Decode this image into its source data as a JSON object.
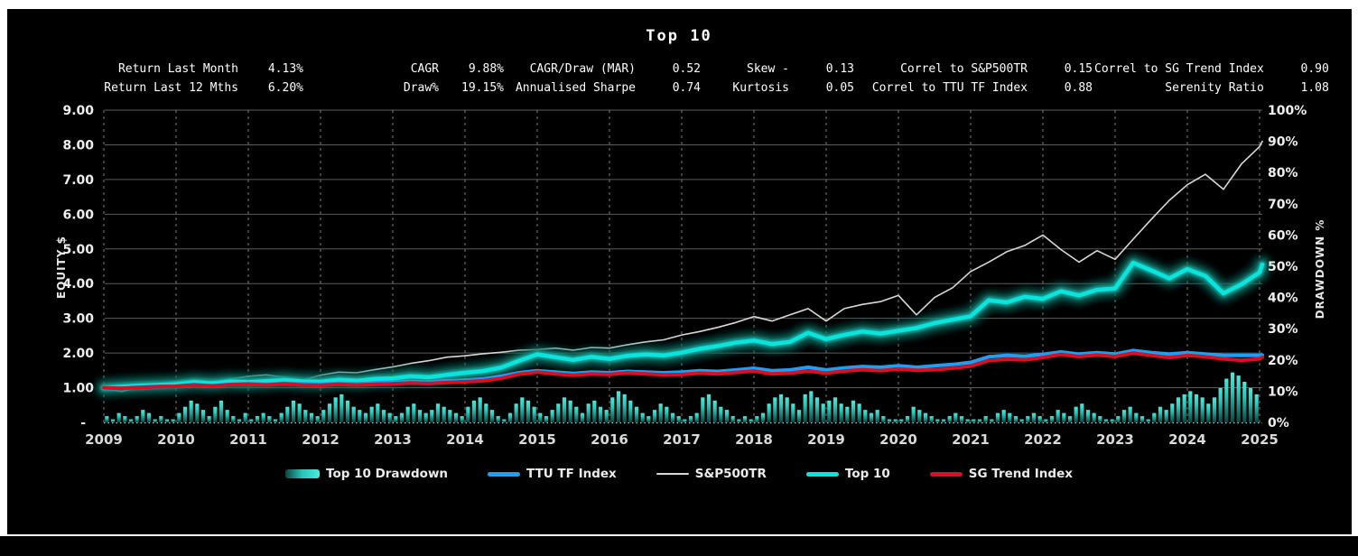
{
  "title": "Top 10",
  "colors": {
    "background": "#000000",
    "frame": "#ffffff",
    "grid": "#5c5c5c",
    "year_grid": "#8a8a8a",
    "baseline": "#cfcfcf",
    "tick_text": "#f0f0f0",
    "year_text": "#d9d9d9",
    "top10": "#0be4dc",
    "top10_glow": "#0a6e64",
    "ttu": "#1e9ef5",
    "sp500": "#d9d9d9",
    "sg_trend": "#d90f24",
    "bar_top": "#4aeadb",
    "bar_mid": "#2cc6b8",
    "bar_bottom": "#0b4540"
  },
  "stats": {
    "groups": [
      {
        "rows": [
          {
            "label": "Return Last Month",
            "value": "4.13%"
          },
          {
            "label": "Return Last 12 Mths",
            "value": "6.20%"
          }
        ]
      },
      {
        "rows": [
          {
            "label": "CAGR",
            "value": "9.88%"
          },
          {
            "label": "Draw%",
            "value": "19.15%"
          }
        ]
      },
      {
        "rows": [
          {
            "label": "CAGR/Draw (MAR)",
            "value": "0.52"
          },
          {
            "label": "Annualised Sharpe",
            "value": "0.74"
          }
        ]
      },
      {
        "rows": [
          {
            "label": "Skew -",
            "value": "0.13"
          },
          {
            "label": "Kurtosis",
            "value": "0.05"
          }
        ]
      },
      {
        "rows": [
          {
            "label": "Correl to S&P500TR",
            "value": "0.15"
          },
          {
            "label": "Correl to TTU TF Index",
            "value": "0.88"
          }
        ]
      },
      {
        "rows": [
          {
            "label": "Correl to SG Trend Index",
            "value": "0.90"
          },
          {
            "label": "Serenity Ratio",
            "value": "1.08"
          }
        ]
      }
    ]
  },
  "legend": {
    "items": [
      {
        "label": "Top 10 Drawdown",
        "swatch": "gradient",
        "colors": [
          "#0b4540",
          "#2cc6b8",
          "#4aeadb"
        ]
      },
      {
        "label": "TTU TF Index",
        "swatch": "line",
        "color": "#1e9ef5"
      },
      {
        "label": "S&P500TR",
        "swatch": "thin-line",
        "color": "#d9d9d9"
      },
      {
        "label": "Top 10",
        "swatch": "line",
        "color": "#0be4dc"
      },
      {
        "label": "SG Trend Index",
        "swatch": "line",
        "color": "#d90f24"
      }
    ]
  },
  "chart_data": {
    "type": "line",
    "title": "Top 10",
    "y_left": {
      "label": "EQUITY $",
      "min": 0,
      "max": 9,
      "ticks": [
        "9.00",
        "8.00",
        "7.00",
        "6.00",
        "5.00",
        "4.00",
        "3.00",
        "2.00",
        "1.00",
        "-"
      ]
    },
    "y_right": {
      "label": "DRAWDOWN %",
      "min": 0,
      "max": 100,
      "ticks": [
        "100%",
        "90%",
        "80%",
        "70%",
        "60%",
        "50%",
        "40%",
        "30%",
        "20%",
        "10%",
        "0%"
      ]
    },
    "x_ticks": [
      "2009",
      "2010",
      "2011",
      "2012",
      "2013",
      "2014",
      "2015",
      "2016",
      "2017",
      "2018",
      "2019",
      "2020",
      "2021",
      "2022",
      "2023",
      "2024",
      "2025"
    ],
    "x_years": [
      2009,
      2009.25,
      2009.5,
      2009.75,
      2010,
      2010.25,
      2010.5,
      2010.75,
      2011,
      2011.25,
      2011.5,
      2011.75,
      2012,
      2012.25,
      2012.5,
      2012.75,
      2013,
      2013.25,
      2013.5,
      2013.75,
      2014,
      2014.25,
      2014.5,
      2014.75,
      2015,
      2015.25,
      2015.5,
      2015.75,
      2016,
      2016.25,
      2016.5,
      2016.75,
      2017,
      2017.25,
      2017.5,
      2017.75,
      2018,
      2018.25,
      2018.5,
      2018.75,
      2019,
      2019.25,
      2019.5,
      2019.75,
      2020,
      2020.25,
      2020.5,
      2020.75,
      2021,
      2021.25,
      2021.5,
      2021.75,
      2022,
      2022.25,
      2022.5,
      2022.75,
      2023,
      2023.25,
      2023.5,
      2023.75,
      2024,
      2024.25,
      2024.5,
      2024.75,
      2025,
      2025.05
    ],
    "series": [
      {
        "name": "S&P500TR",
        "color": "#d9d9d9",
        "width": 1.6,
        "glow": false,
        "values": [
          0.97,
          0.89,
          1.02,
          1.12,
          1.18,
          1.22,
          1.13,
          1.25,
          1.33,
          1.37,
          1.3,
          1.22,
          1.36,
          1.45,
          1.43,
          1.52,
          1.6,
          1.7,
          1.78,
          1.88,
          1.92,
          1.98,
          2.02,
          2.08,
          2.1,
          2.14,
          2.08,
          2.16,
          2.14,
          2.24,
          2.32,
          2.38,
          2.52,
          2.62,
          2.74,
          2.88,
          3.05,
          2.92,
          3.1,
          3.28,
          2.92,
          3.28,
          3.4,
          3.48,
          3.66,
          3.1,
          3.6,
          3.88,
          4.35,
          4.62,
          4.92,
          5.1,
          5.4,
          4.98,
          4.62,
          4.95,
          4.7,
          5.28,
          5.85,
          6.4,
          6.85,
          7.15,
          6.72,
          7.45,
          7.95,
          8.1
        ]
      },
      {
        "name": "Top 10",
        "color": "#0be4dc",
        "width": 4.5,
        "glow": true,
        "values": [
          1.0,
          1.03,
          1.06,
          1.08,
          1.1,
          1.16,
          1.13,
          1.18,
          1.16,
          1.19,
          1.22,
          1.18,
          1.17,
          1.23,
          1.2,
          1.25,
          1.27,
          1.33,
          1.3,
          1.37,
          1.43,
          1.48,
          1.58,
          1.78,
          1.96,
          1.88,
          1.8,
          1.89,
          1.83,
          1.92,
          1.96,
          1.93,
          2.01,
          2.12,
          2.2,
          2.3,
          2.36,
          2.26,
          2.32,
          2.58,
          2.4,
          2.52,
          2.62,
          2.56,
          2.64,
          2.72,
          2.86,
          2.96,
          3.06,
          3.52,
          3.46,
          3.62,
          3.56,
          3.78,
          3.66,
          3.82,
          3.86,
          4.6,
          4.38,
          4.15,
          4.42,
          4.22,
          3.72,
          3.98,
          4.32,
          4.55
        ]
      },
      {
        "name": "TTU TF Index",
        "color": "#1e9ef5",
        "width": 4,
        "glow": false,
        "values": [
          1.0,
          0.99,
          1.02,
          1.04,
          1.05,
          1.09,
          1.06,
          1.1,
          1.12,
          1.1,
          1.13,
          1.11,
          1.1,
          1.13,
          1.11,
          1.14,
          1.15,
          1.18,
          1.16,
          1.2,
          1.22,
          1.25,
          1.33,
          1.43,
          1.49,
          1.45,
          1.41,
          1.45,
          1.43,
          1.47,
          1.45,
          1.43,
          1.45,
          1.49,
          1.47,
          1.51,
          1.56,
          1.49,
          1.51,
          1.59,
          1.51,
          1.57,
          1.61,
          1.59,
          1.63,
          1.59,
          1.63,
          1.67,
          1.73,
          1.89,
          1.93,
          1.91,
          1.96,
          2.03,
          1.97,
          2.01,
          1.97,
          2.07,
          2.01,
          1.97,
          2.01,
          1.97,
          1.93,
          1.93,
          1.93,
          1.94
        ]
      },
      {
        "name": "SG Trend Index",
        "color": "#d90f24",
        "width": 4,
        "glow": false,
        "values": [
          1.0,
          0.98,
          1.01,
          1.03,
          1.04,
          1.08,
          1.05,
          1.09,
          1.1,
          1.08,
          1.11,
          1.08,
          1.07,
          1.1,
          1.08,
          1.1,
          1.11,
          1.14,
          1.12,
          1.15,
          1.17,
          1.2,
          1.27,
          1.39,
          1.45,
          1.4,
          1.36,
          1.4,
          1.38,
          1.43,
          1.4,
          1.37,
          1.38,
          1.42,
          1.4,
          1.44,
          1.48,
          1.4,
          1.42,
          1.48,
          1.42,
          1.48,
          1.52,
          1.49,
          1.54,
          1.5,
          1.52,
          1.56,
          1.62,
          1.78,
          1.82,
          1.8,
          1.87,
          1.96,
          1.9,
          1.94,
          1.9,
          2.0,
          1.93,
          1.87,
          1.93,
          1.89,
          1.83,
          1.79,
          1.83,
          1.88
        ]
      }
    ],
    "drawdown": {
      "name": "Top 10 Drawdown",
      "unit": "%",
      "start": "2009-01",
      "monthly_values": [
        2,
        1,
        3,
        2,
        1,
        2,
        4,
        3,
        1,
        2,
        1,
        1,
        3,
        5,
        7,
        6,
        4,
        2,
        5,
        7,
        4,
        2,
        1,
        3,
        1,
        2,
        3,
        2,
        1,
        3,
        5,
        7,
        6,
        4,
        3,
        2,
        4,
        6,
        8,
        9,
        7,
        5,
        4,
        3,
        5,
        6,
        4,
        3,
        2,
        3,
        5,
        6,
        4,
        3,
        4,
        6,
        5,
        4,
        3,
        2,
        5,
        7,
        8,
        6,
        4,
        2,
        1,
        3,
        6,
        8,
        7,
        5,
        3,
        2,
        4,
        6,
        8,
        7,
        5,
        3,
        6,
        7,
        5,
        4,
        8,
        10,
        9,
        7,
        5,
        3,
        2,
        4,
        6,
        5,
        3,
        2,
        1,
        2,
        3,
        8,
        9,
        7,
        5,
        4,
        2,
        1,
        2,
        1,
        2,
        3,
        6,
        8,
        9,
        8,
        6,
        4,
        9,
        10,
        8,
        6,
        7,
        8,
        6,
        5,
        7,
        6,
        4,
        3,
        4,
        2,
        1,
        1,
        1,
        2,
        5,
        4,
        3,
        2,
        1,
        1,
        2,
        3,
        2,
        1,
        1,
        1,
        2,
        1,
        3,
        4,
        3,
        2,
        1,
        2,
        3,
        2,
        1,
        2,
        4,
        3,
        2,
        5,
        6,
        4,
        3,
        2,
        1,
        1,
        2,
        4,
        5,
        3,
        2,
        1,
        3,
        5,
        4,
        6,
        8,
        9,
        10,
        9,
        8,
        6,
        8,
        11,
        14,
        16,
        15,
        13,
        11,
        9,
        6,
        3,
        1
      ]
    }
  }
}
